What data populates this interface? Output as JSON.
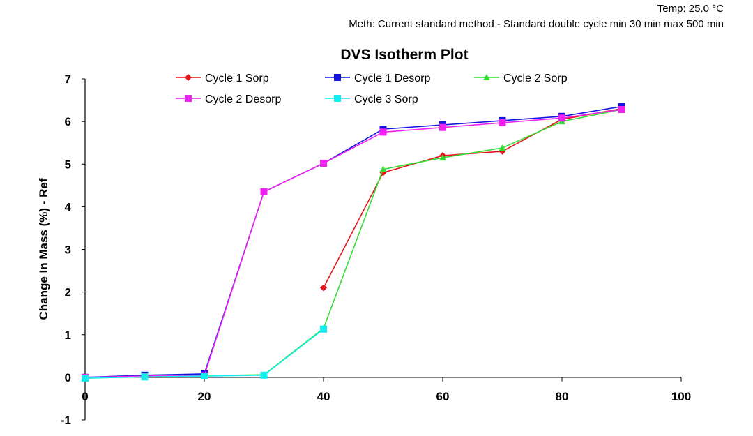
{
  "header": {
    "temp": "Temp:  25.0 °C",
    "method": "Meth:  Current standard method - Standard double cycle min 30 min max 500 min"
  },
  "chart_data": {
    "type": "line",
    "title": "DVS Isotherm Plot",
    "xlabel": "",
    "ylabel": "Change In Mass (%) - Ref",
    "xlim": [
      0,
      100
    ],
    "ylim": [
      -1,
      7
    ],
    "xticks": [
      0,
      20,
      40,
      60,
      80,
      100
    ],
    "yticks": [
      -1,
      0,
      1,
      2,
      3,
      4,
      5,
      6,
      7
    ],
    "legend_position": "top",
    "series": [
      {
        "name": "Cycle 1 Sorp",
        "color": "#e8141c",
        "marker": "diamond",
        "x": [
          40,
          50,
          60,
          70,
          80,
          90
        ],
        "y": [
          2.1,
          4.8,
          5.2,
          5.3,
          6.05,
          6.3
        ]
      },
      {
        "name": "Cycle 1 Desorp",
        "color": "#1414e0",
        "marker": "square",
        "x": [
          90,
          80,
          70,
          60,
          50,
          40,
          30,
          20,
          10,
          0
        ],
        "y": [
          6.35,
          6.12,
          6.02,
          5.92,
          5.82,
          5.02,
          4.35,
          0.08,
          0.05,
          0.0
        ]
      },
      {
        "name": "Cycle 2 Sorp",
        "color": "#33dd33",
        "marker": "triangle",
        "x": [
          0,
          10,
          20,
          30,
          40,
          50,
          60,
          70,
          80,
          90
        ],
        "y": [
          -0.02,
          0.02,
          0.04,
          0.06,
          1.15,
          4.88,
          5.15,
          5.38,
          6.0,
          6.28
        ]
      },
      {
        "name": "Cycle 2 Desorp",
        "color": "#ee22ee",
        "marker": "square",
        "x": [
          90,
          80,
          70,
          60,
          50,
          40,
          30,
          20,
          10,
          0
        ],
        "y": [
          6.28,
          6.08,
          5.97,
          5.86,
          5.75,
          5.02,
          4.35,
          0.04,
          0.03,
          0.0
        ]
      },
      {
        "name": "Cycle 3 Sorp",
        "color": "#11eeee",
        "marker": "square",
        "x": [
          0,
          10,
          20,
          30,
          40
        ],
        "y": [
          -0.02,
          0.01,
          0.03,
          0.05,
          1.13
        ]
      }
    ]
  }
}
